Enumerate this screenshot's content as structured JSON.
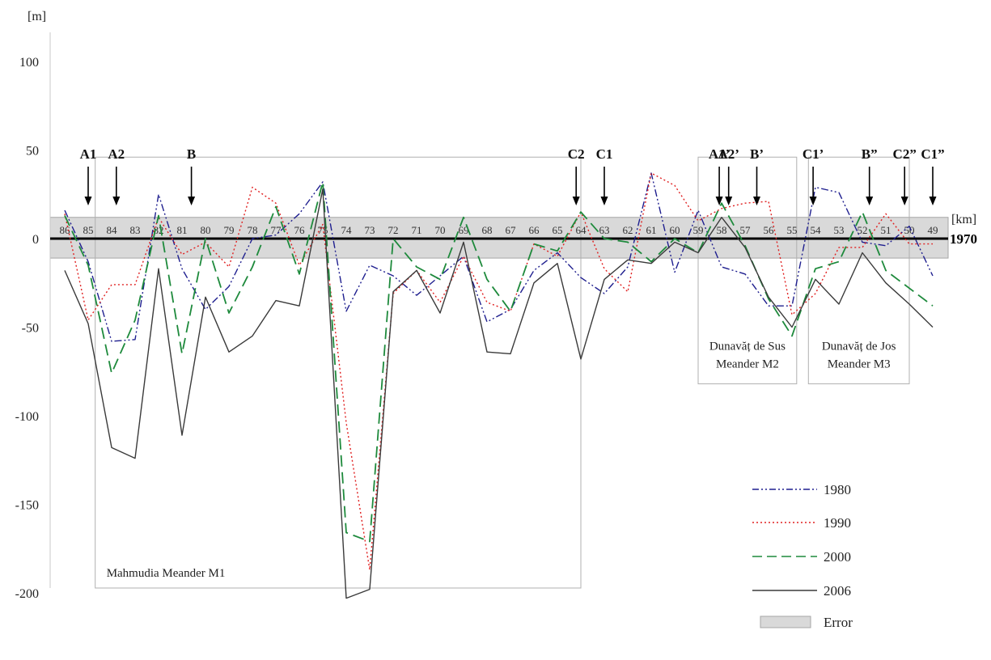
{
  "chart_data": {
    "type": "line",
    "y_unit": "[m]",
    "x_unit": "[km]",
    "ylim": [
      -200,
      100
    ],
    "y_ticks": [
      "100",
      "50",
      "0",
      "-50",
      "-100",
      "-150",
      "-200"
    ],
    "y_tick_values": [
      100,
      50,
      0,
      -50,
      -100,
      -150,
      -200
    ],
    "x": [
      86,
      85,
      84,
      83,
      82,
      81,
      80,
      79,
      78,
      77,
      76,
      75,
      74,
      73,
      72,
      71,
      70,
      69,
      68,
      67,
      66,
      65,
      64,
      63,
      62,
      61,
      60,
      59,
      58,
      57,
      56,
      55,
      54,
      53,
      52,
      51,
      50,
      49
    ],
    "x_ticks": [
      "86",
      "85",
      "84",
      "83",
      "82",
      "81",
      "80",
      "79",
      "78",
      "77",
      "76",
      "75",
      "74",
      "73",
      "72",
      "71",
      "70",
      "69",
      "68",
      "67",
      "66",
      "65",
      "64",
      "63",
      "62",
      "61",
      "60",
      "59",
      "58",
      "57",
      "56",
      "55",
      "54",
      "53",
      "52",
      "51",
      "50",
      "49"
    ],
    "baseline": {
      "label": "1970",
      "value": 0
    },
    "error_band": {
      "name": "Error",
      "min": -11,
      "max": 12
    },
    "series": [
      {
        "name": "1980",
        "color": "#1f1f8f",
        "dash": "dashdot",
        "values": [
          16,
          -13,
          -58,
          -57,
          25,
          -17,
          -40,
          -27,
          0,
          2,
          14,
          32,
          -41,
          -15,
          -21,
          -32,
          -21,
          -10,
          -47,
          -40,
          -18,
          -8,
          -22,
          -31,
          -16,
          37,
          -19,
          16,
          -16,
          -20,
          -38,
          -38,
          29,
          26,
          -2,
          -4,
          7,
          -21
        ]
      },
      {
        "name": "1990",
        "color": "#e02020",
        "dash": "dotted",
        "values": [
          14,
          -46,
          -26,
          -26,
          12,
          -9,
          -2,
          -16,
          29,
          20,
          -15,
          8,
          -104,
          -187,
          -31,
          -18,
          -36,
          -10,
          -36,
          -41,
          -3,
          -10,
          15,
          -17,
          -30,
          37,
          30,
          10,
          17,
          20,
          21,
          -43,
          -31,
          -5,
          -5,
          14,
          -3,
          -3
        ]
      },
      {
        "name": "2000",
        "color": "#1e8a3c",
        "dash": "dashed",
        "values": [
          13,
          -15,
          -76,
          -46,
          13,
          -65,
          0,
          -42,
          -16,
          18,
          -20,
          32,
          -166,
          -171,
          0,
          -16,
          -23,
          12,
          -23,
          -41,
          -3,
          -7,
          15,
          0,
          -2,
          -13,
          0,
          -8,
          20,
          -4,
          -34,
          -55,
          -17,
          -13,
          15,
          -18,
          -28,
          -38
        ]
      },
      {
        "name": "2006",
        "color": "#3a3a3a",
        "dash": "solid",
        "values": [
          -18,
          -48,
          -118,
          -124,
          -17,
          -111,
          -33,
          -64,
          -55,
          -35,
          -38,
          28,
          -203,
          -198,
          -30,
          -18,
          -42,
          -2,
          -64,
          -65,
          -25,
          -14,
          -68,
          -23,
          -12,
          -14,
          -2,
          -8,
          12,
          -5,
          -33,
          -50,
          -23,
          -37,
          -8,
          -25,
          -37,
          -50
        ]
      }
    ],
    "arrows": [
      {
        "label": "A1",
        "km": 85.0
      },
      {
        "label": "A2",
        "km": 83.8
      },
      {
        "label": "B",
        "km": 80.6
      },
      {
        "label": "C2",
        "km": 64.2
      },
      {
        "label": "C1",
        "km": 63.0
      },
      {
        "label": "A1’",
        "km": 58.1
      },
      {
        "label": "A2’",
        "km": 57.7
      },
      {
        "label": "B’",
        "km": 56.5
      },
      {
        "label": "C1’",
        "km": 54.1
      },
      {
        "label": "B”",
        "km": 51.7
      },
      {
        "label": "C2”",
        "km": 50.2
      },
      {
        "label": "C1”",
        "km": 49.0
      }
    ],
    "regions": [
      {
        "label": "Mahmudia Meander M1",
        "from_km": 84.7,
        "to_km": 64.0,
        "top": 46,
        "bottom": -200
      },
      {
        "label": "Dunavăț de Sus\nMeander M2",
        "from_km": 59.0,
        "to_km": 54.8,
        "top": 46,
        "bottom": -82
      },
      {
        "label": "Dunavăț de Jos\nMeander M3",
        "from_km": 54.3,
        "to_km": 50.0,
        "top": 46,
        "bottom": -82
      }
    ],
    "grid": false,
    "legend_position": "bottom-right"
  }
}
